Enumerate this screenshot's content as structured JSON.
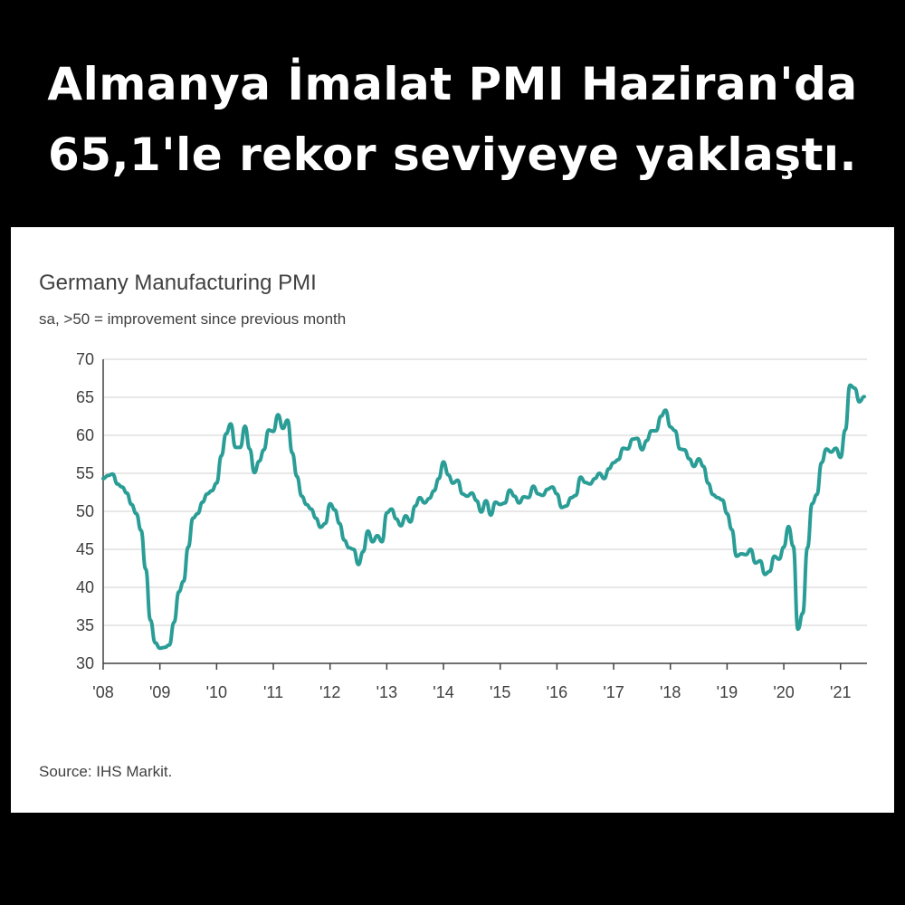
{
  "headline": {
    "line1": "Almanya İmalat PMI Haziran'da",
    "line2": "65,1'le rekor seviyeye yaklaştı."
  },
  "colors": {
    "background": "#000000",
    "card": "#ffffff",
    "line": "#2a9d96",
    "grid": "#d9d9d9",
    "axis": "#404040"
  },
  "source": "Source: IHS Markit.",
  "chart_data": {
    "type": "line",
    "title": "Germany Manufacturing PMI",
    "subtitle": "sa, >50 = improvement since previous month",
    "xlabel": "",
    "ylabel": "",
    "ylim": [
      30,
      70
    ],
    "yticks": [
      30,
      35,
      40,
      45,
      50,
      55,
      60,
      65,
      70
    ],
    "xticks": [
      {
        "label": "'08",
        "year": 2008
      },
      {
        "label": "'09",
        "year": 2009
      },
      {
        "label": "'10",
        "year": 2010
      },
      {
        "label": "'11",
        "year": 2011
      },
      {
        "label": "'12",
        "year": 2012
      },
      {
        "label": "'13",
        "year": 2013
      },
      {
        "label": "'14",
        "year": 2014
      },
      {
        "label": "'15",
        "year": 2015
      },
      {
        "label": "'16",
        "year": 2016
      },
      {
        "label": "'17",
        "year": 2017
      },
      {
        "label": "'18",
        "year": 2018
      },
      {
        "label": "'19",
        "year": 2019
      },
      {
        "label": "'20",
        "year": 2020
      },
      {
        "label": "'21",
        "year": 2021
      }
    ],
    "grid": true,
    "series": [
      {
        "name": "Germany Manufacturing PMI",
        "start": "2008-01",
        "frequency": "monthly",
        "values": [
          54.3,
          54.7,
          54.9,
          53.6,
          53.2,
          52.4,
          50.9,
          49.7,
          47.5,
          42.4,
          35.7,
          32.7,
          32.0,
          32.1,
          32.4,
          35.4,
          39.4,
          40.8,
          45.3,
          49.1,
          49.7,
          51.2,
          52.3,
          52.7,
          53.7,
          57.3,
          60.2,
          61.5,
          58.4,
          58.4,
          61.2,
          58.2,
          55.1,
          56.6,
          58.1,
          60.7,
          60.5,
          62.7,
          60.9,
          62.0,
          57.7,
          54.6,
          52.0,
          50.9,
          50.3,
          49.1,
          47.9,
          48.4,
          51.0,
          50.2,
          48.4,
          46.2,
          45.2,
          45.0,
          43.0,
          44.7,
          47.4,
          46.0,
          46.8,
          46.0,
          49.8,
          50.3,
          49.0,
          48.1,
          49.4,
          48.6,
          50.7,
          51.8,
          51.1,
          51.7,
          52.7,
          54.3,
          56.5,
          54.8,
          53.7,
          54.1,
          52.3,
          52.0,
          52.4,
          51.4,
          49.9,
          51.4,
          49.5,
          51.2,
          50.9,
          51.1,
          52.8,
          52.0,
          51.1,
          51.9,
          51.8,
          53.3,
          52.3,
          52.1,
          52.9,
          53.2,
          52.3,
          50.5,
          50.7,
          51.8,
          52.1,
          54.5,
          53.8,
          53.6,
          54.3,
          55.0,
          54.3,
          55.6,
          56.4,
          56.8,
          58.3,
          58.2,
          59.5,
          59.6,
          58.1,
          59.3,
          60.6,
          60.6,
          62.5,
          63.3,
          61.1,
          60.6,
          58.2,
          58.1,
          56.9,
          55.9,
          56.9,
          55.9,
          53.7,
          52.2,
          51.8,
          51.5,
          49.7,
          47.6,
          44.1,
          44.4,
          44.3,
          45.0,
          43.2,
          43.5,
          41.7,
          42.1,
          44.1,
          43.7,
          45.3,
          48.0,
          45.4,
          34.5,
          36.6,
          45.2,
          51.0,
          52.2,
          56.4,
          58.2,
          57.8,
          58.3,
          57.1,
          60.7,
          66.6,
          66.2,
          64.4,
          65.1
        ]
      }
    ]
  }
}
